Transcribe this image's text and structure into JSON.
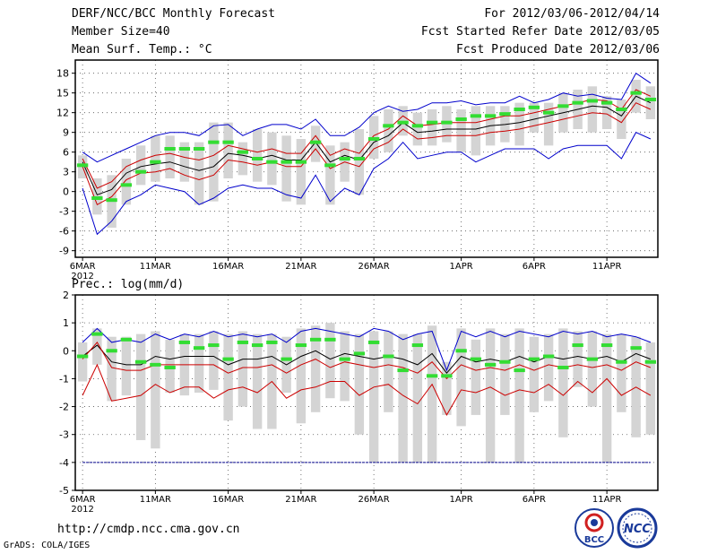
{
  "header": {
    "title": "DERF/NCC/BCC Monthly Forecast",
    "member_size": "Member Size=40",
    "variable": "Mean Surf. Temp.: °C",
    "period": "For 2012/03/06-2012/04/14",
    "fcst_start": "Fcst Started Refer Date 2012/03/05",
    "fcst_produced": "Fcst Produced Date 2012/03/06"
  },
  "footer": {
    "url": "http://cmdp.ncc.cma.gov.cn",
    "grads": "GrADS: COLA/IGES",
    "logo_bcc": "BCC",
    "logo_ncc": "NCC"
  },
  "chart_data": [
    {
      "type": "line",
      "title": "Mean Surf. Temp.: °C",
      "x_tick_labels": [
        "6MAR",
        "11MAR",
        "16MAR",
        "21MAR",
        "26MAR",
        "1APR",
        "6APR",
        "11APR"
      ],
      "x_tick_days": [
        1,
        6,
        11,
        16,
        21,
        27,
        32,
        37
      ],
      "year_label": "2012",
      "y_ticks": [
        "18",
        "15",
        "12",
        "9",
        "6",
        "3",
        "0",
        "-3",
        "-6",
        "-9"
      ],
      "ylim": [
        -10,
        20
      ],
      "days": 40,
      "series": [
        {
          "name": "ensemble mean",
          "color": "#000000",
          "values": [
            4.5,
            -0.5,
            0.3,
            2.8,
            3.8,
            4.2,
            4.5,
            3.8,
            3.2,
            3.8,
            5.8,
            5.5,
            5.0,
            5.5,
            4.8,
            4.8,
            7.5,
            4.5,
            5.5,
            4.8,
            7.5,
            8.5,
            10.5,
            9.0,
            9.2,
            9.5,
            9.5,
            9.5,
            10.0,
            10.2,
            10.5,
            11.0,
            11.5,
            12.0,
            12.5,
            13.0,
            12.8,
            11.5,
            14.5,
            13.5
          ]
        },
        {
          "name": "upper spread",
          "color": "#cc0000",
          "values": [
            5.0,
            0.5,
            1.5,
            3.8,
            4.8,
            5.5,
            5.8,
            5.2,
            4.8,
            5.5,
            7.0,
            6.5,
            6.0,
            6.5,
            5.8,
            5.8,
            8.5,
            5.5,
            6.5,
            5.8,
            8.5,
            9.5,
            11.5,
            10.0,
            10.2,
            10.5,
            10.5,
            10.5,
            11.0,
            11.5,
            11.5,
            12.0,
            12.5,
            13.0,
            13.5,
            14.0,
            13.8,
            12.5,
            15.5,
            14.5
          ]
        },
        {
          "name": "lower spread",
          "color": "#cc0000",
          "values": [
            3.8,
            -2.0,
            -0.8,
            1.8,
            2.8,
            3.0,
            3.5,
            2.5,
            1.8,
            2.5,
            4.8,
            4.5,
            4.0,
            4.5,
            3.8,
            3.8,
            6.5,
            3.5,
            4.5,
            3.8,
            6.5,
            7.5,
            9.5,
            8.0,
            8.2,
            8.5,
            8.5,
            8.5,
            9.0,
            9.2,
            9.5,
            10.0,
            10.5,
            11.0,
            11.5,
            12.0,
            11.8,
            10.5,
            13.5,
            12.5
          ]
        },
        {
          "name": "ensemble max",
          "color": "#0000cc",
          "values": [
            6.0,
            4.5,
            5.5,
            6.5,
            7.5,
            8.5,
            9.0,
            9.0,
            8.5,
            10.0,
            10.2,
            8.5,
            9.5,
            10.2,
            10.2,
            9.5,
            11.0,
            8.5,
            8.5,
            9.8,
            12.0,
            13.0,
            12.2,
            12.5,
            13.5,
            13.5,
            13.8,
            13.2,
            13.5,
            13.5,
            14.5,
            13.5,
            14.0,
            15.0,
            14.5,
            14.8,
            14.2,
            14.0,
            18.0,
            16.5
          ]
        },
        {
          "name": "ensemble min",
          "color": "#0000cc",
          "values": [
            0.5,
            -6.5,
            -4.5,
            -1.5,
            -0.5,
            1.0,
            0.5,
            0.0,
            -2.0,
            -1.0,
            0.5,
            1.0,
            0.5,
            0.5,
            -0.5,
            -1.0,
            2.5,
            -1.5,
            0.5,
            -0.5,
            3.5,
            5.0,
            7.5,
            5.0,
            5.5,
            6.0,
            6.0,
            4.5,
            5.5,
            6.5,
            6.5,
            6.5,
            5.0,
            6.5,
            7.0,
            7.0,
            7.0,
            5.0,
            9.0,
            8.0
          ]
        }
      ],
      "observed_marks": {
        "color": "#33dd33",
        "values": [
          4.0,
          -1.0,
          -1.3,
          1.0,
          3.0,
          4.5,
          6.5,
          6.5,
          6.5,
          7.5,
          7.5,
          6.0,
          5.0,
          4.5,
          4.5,
          4.5,
          7.5,
          4.0,
          5.0,
          5.0,
          8.0,
          10.0,
          10.5,
          10.0,
          10.5,
          10.5,
          11.0,
          11.5,
          11.5,
          11.8,
          12.5,
          12.8,
          12.0,
          13.0,
          13.5,
          13.8,
          13.5,
          12.5,
          15.0,
          14.0
        ]
      },
      "spread_bars": {
        "color": "#d4d4d4",
        "low": [
          2.0,
          -3.5,
          -5.5,
          -2.0,
          1.0,
          1.5,
          2.0,
          1.5,
          -2.0,
          -1.5,
          2.0,
          2.5,
          1.5,
          1.0,
          -1.5,
          -2.0,
          4.5,
          -2.0,
          1.5,
          -0.5,
          5.0,
          6.0,
          8.5,
          7.0,
          7.0,
          7.5,
          6.0,
          5.5,
          7.0,
          7.5,
          7.0,
          9.0,
          7.0,
          9.0,
          9.5,
          9.0,
          9.5,
          8.0,
          12.0,
          11.0
        ],
        "high": [
          5.5,
          2.0,
          2.5,
          5.0,
          7.0,
          8.5,
          8.5,
          7.5,
          7.5,
          10.5,
          10.5,
          7.5,
          9.5,
          9.0,
          8.5,
          8.0,
          10.0,
          7.0,
          7.5,
          9.5,
          11.5,
          12.5,
          13.0,
          12.0,
          12.5,
          13.0,
          12.5,
          13.0,
          13.0,
          13.0,
          13.5,
          13.5,
          13.5,
          15.0,
          15.5,
          16.0,
          14.5,
          14.0,
          17.0,
          16.0
        ]
      }
    },
    {
      "type": "line",
      "title": "Prec.: log(mm/d)",
      "x_tick_labels": [
        "6MAR",
        "11MAR",
        "16MAR",
        "21MAR",
        "26MAR",
        "1APR",
        "6APR",
        "11APR"
      ],
      "x_tick_days": [
        1,
        6,
        11,
        16,
        21,
        27,
        32,
        37
      ],
      "year_label": "2012",
      "y_ticks": [
        "2",
        "1",
        "0",
        "-1",
        "-2",
        "-3",
        "-4",
        "-5"
      ],
      "ylim": [
        -5,
        2
      ],
      "days": 40,
      "series": [
        {
          "name": "ensemble mean",
          "color": "#000000",
          "values": [
            -0.2,
            0.2,
            -0.4,
            -0.5,
            -0.5,
            -0.2,
            -0.3,
            -0.2,
            -0.2,
            -0.2,
            -0.5,
            -0.3,
            -0.3,
            -0.2,
            -0.5,
            -0.2,
            0.0,
            -0.3,
            -0.1,
            -0.2,
            -0.3,
            -0.2,
            -0.3,
            -0.5,
            -0.1,
            -0.8,
            -0.2,
            -0.4,
            -0.3,
            -0.4,
            -0.2,
            -0.4,
            -0.2,
            -0.3,
            -0.2,
            -0.3,
            -0.2,
            -0.4,
            -0.1,
            -0.3
          ]
        },
        {
          "name": "upper spread",
          "color": "#cc0000",
          "values": [
            -0.3,
            0.3,
            -0.6,
            -0.7,
            -0.7,
            -0.5,
            -0.5,
            -0.5,
            -0.5,
            -0.5,
            -0.8,
            -0.6,
            -0.6,
            -0.5,
            -0.8,
            -0.5,
            -0.3,
            -0.6,
            -0.4,
            -0.5,
            -0.6,
            -0.5,
            -0.6,
            -0.8,
            -0.4,
            -1.0,
            -0.5,
            -0.7,
            -0.6,
            -0.7,
            -0.5,
            -0.7,
            -0.5,
            -0.6,
            -0.5,
            -0.6,
            -0.5,
            -0.7,
            -0.4,
            -0.6
          ]
        },
        {
          "name": "lower spread",
          "color": "#cc0000",
          "values": [
            -1.6,
            -0.5,
            -1.8,
            -1.7,
            -1.6,
            -1.2,
            -1.5,
            -1.3,
            -1.3,
            -1.7,
            -1.4,
            -1.3,
            -1.5,
            -1.1,
            -1.7,
            -1.4,
            -1.3,
            -1.1,
            -1.1,
            -1.6,
            -1.3,
            -1.2,
            -1.6,
            -1.9,
            -1.2,
            -2.3,
            -1.4,
            -1.5,
            -1.3,
            -1.6,
            -1.4,
            -1.5,
            -1.2,
            -1.6,
            -1.1,
            -1.5,
            -1.0,
            -1.6,
            -1.3,
            -1.6
          ]
        },
        {
          "name": "ensemble max",
          "color": "#0000cc",
          "values": [
            0.3,
            0.8,
            0.3,
            0.4,
            0.3,
            0.6,
            0.4,
            0.6,
            0.5,
            0.7,
            0.5,
            0.6,
            0.5,
            0.6,
            0.3,
            0.7,
            0.8,
            0.7,
            0.6,
            0.5,
            0.8,
            0.7,
            0.4,
            0.6,
            0.7,
            -0.7,
            0.7,
            0.5,
            0.7,
            0.5,
            0.7,
            0.6,
            0.5,
            0.7,
            0.6,
            0.7,
            0.5,
            0.6,
            0.5,
            0.3
          ]
        },
        {
          "name": "ensemble min",
          "color": "#00008b",
          "values": [
            -4,
            -4,
            -4,
            -4,
            -4,
            -4,
            -4,
            -4,
            -4,
            -4,
            -4,
            -4,
            -4,
            -4,
            -4,
            -4,
            -4,
            -4,
            -4,
            -4,
            -4,
            -4,
            -4,
            -4,
            -4,
            -4,
            -4,
            -4,
            -4,
            -4,
            -4,
            -4,
            -4,
            -4,
            -4,
            -4,
            -4,
            -4,
            -4,
            -4
          ]
        }
      ],
      "observed_marks": {
        "color": "#33dd33",
        "values": [
          -0.2,
          0.6,
          0.0,
          0.4,
          -0.4,
          -0.5,
          -0.6,
          0.3,
          0.1,
          0.2,
          -0.3,
          0.3,
          0.2,
          0.3,
          -0.3,
          0.2,
          0.4,
          0.4,
          -0.3,
          -0.1,
          0.3,
          -0.2,
          -0.7,
          0.2,
          -0.9,
          -0.9,
          0.0,
          -0.3,
          -0.5,
          -0.4,
          -0.7,
          -0.3,
          -0.2,
          -0.6,
          0.2,
          -0.3,
          0.2,
          -0.4,
          0.1,
          -0.4
        ]
      },
      "spread_bars": {
        "color": "#d4d4d4",
        "low": [
          -1.1,
          -0.5,
          -1.8,
          -1.6,
          -3.2,
          -3.5,
          -1.5,
          -1.6,
          -1.5,
          -1.4,
          -2.5,
          -2.0,
          -2.8,
          -2.8,
          -1.5,
          -2.6,
          -2.2,
          -1.7,
          -1.8,
          -3.0,
          -4.0,
          -2.2,
          -4.0,
          -4.0,
          -4.0,
          -2.3,
          -2.7,
          -2.3,
          -4.0,
          -2.3,
          -4.0,
          -2.2,
          -1.8,
          -3.1,
          -1.3,
          -2.0,
          -4.0,
          -2.2,
          -3.1,
          -3.0
        ],
        "high": [
          0.3,
          0.8,
          0.5,
          0.5,
          0.6,
          0.7,
          0.4,
          0.6,
          0.6,
          0.7,
          0.6,
          0.7,
          0.6,
          0.6,
          0.5,
          0.8,
          0.9,
          1.0,
          0.7,
          0.6,
          0.7,
          0.7,
          0.6,
          0.6,
          0.9,
          -0.4,
          0.8,
          0.4,
          0.8,
          0.6,
          0.8,
          0.5,
          0.6,
          0.8,
          0.7,
          0.7,
          0.6,
          0.6,
          0.5,
          0.3
        ]
      }
    }
  ]
}
